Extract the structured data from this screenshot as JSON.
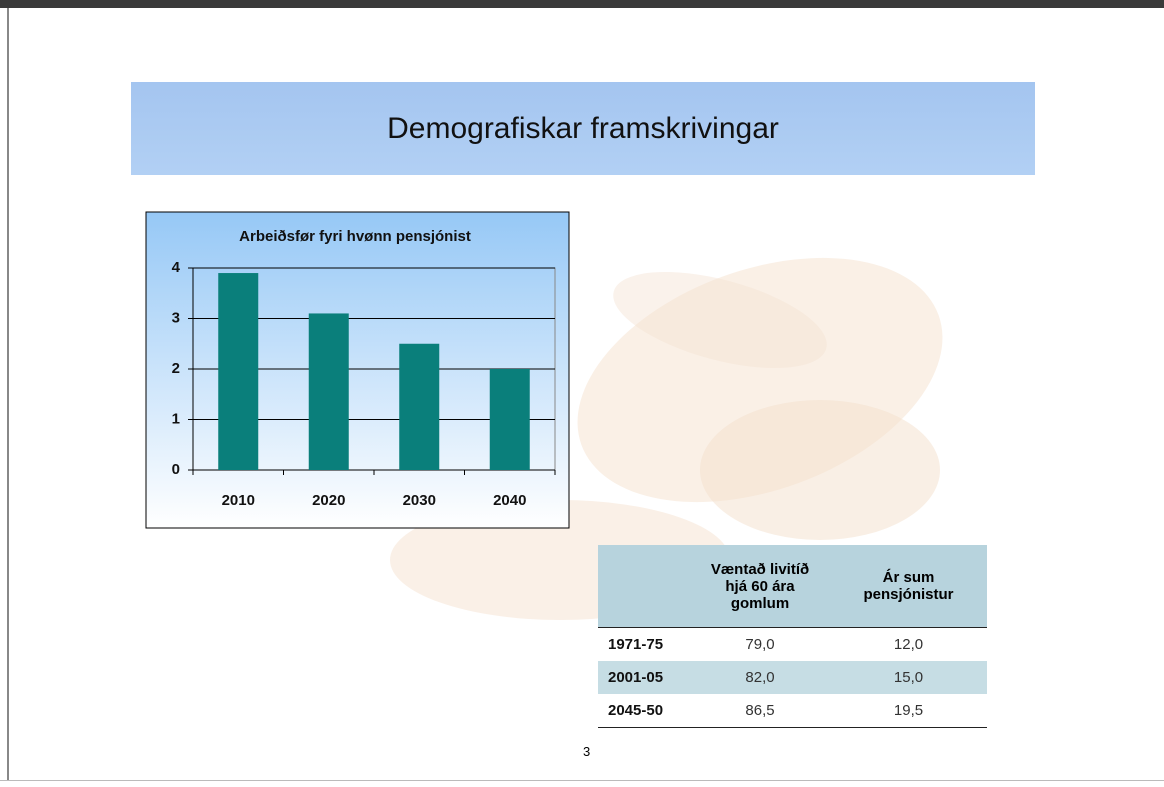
{
  "header": {
    "title": "Demografiskar framskrivingar"
  },
  "chart_data": {
    "type": "bar",
    "title": "Arbeiðsfør fyri hvønn pensjónist",
    "categories": [
      "2010",
      "2020",
      "2030",
      "2040"
    ],
    "values": [
      3.9,
      3.1,
      2.5,
      2.0
    ],
    "color": "#0a7f7b",
    "ylim": [
      0,
      4
    ],
    "yticks": [
      0,
      1,
      2,
      3,
      4
    ],
    "grid": true
  },
  "table": {
    "columns": [
      "Væntað livitíð hjá 60 ára gomlum",
      "Ár sum pensjónistur"
    ],
    "rows": [
      [
        "1971-75",
        "79,0",
        "12,0"
      ],
      [
        "2001-05",
        "82,0",
        "15,0"
      ],
      [
        "2045-50",
        "86,5",
        "19,5"
      ]
    ]
  },
  "page_number": "3"
}
